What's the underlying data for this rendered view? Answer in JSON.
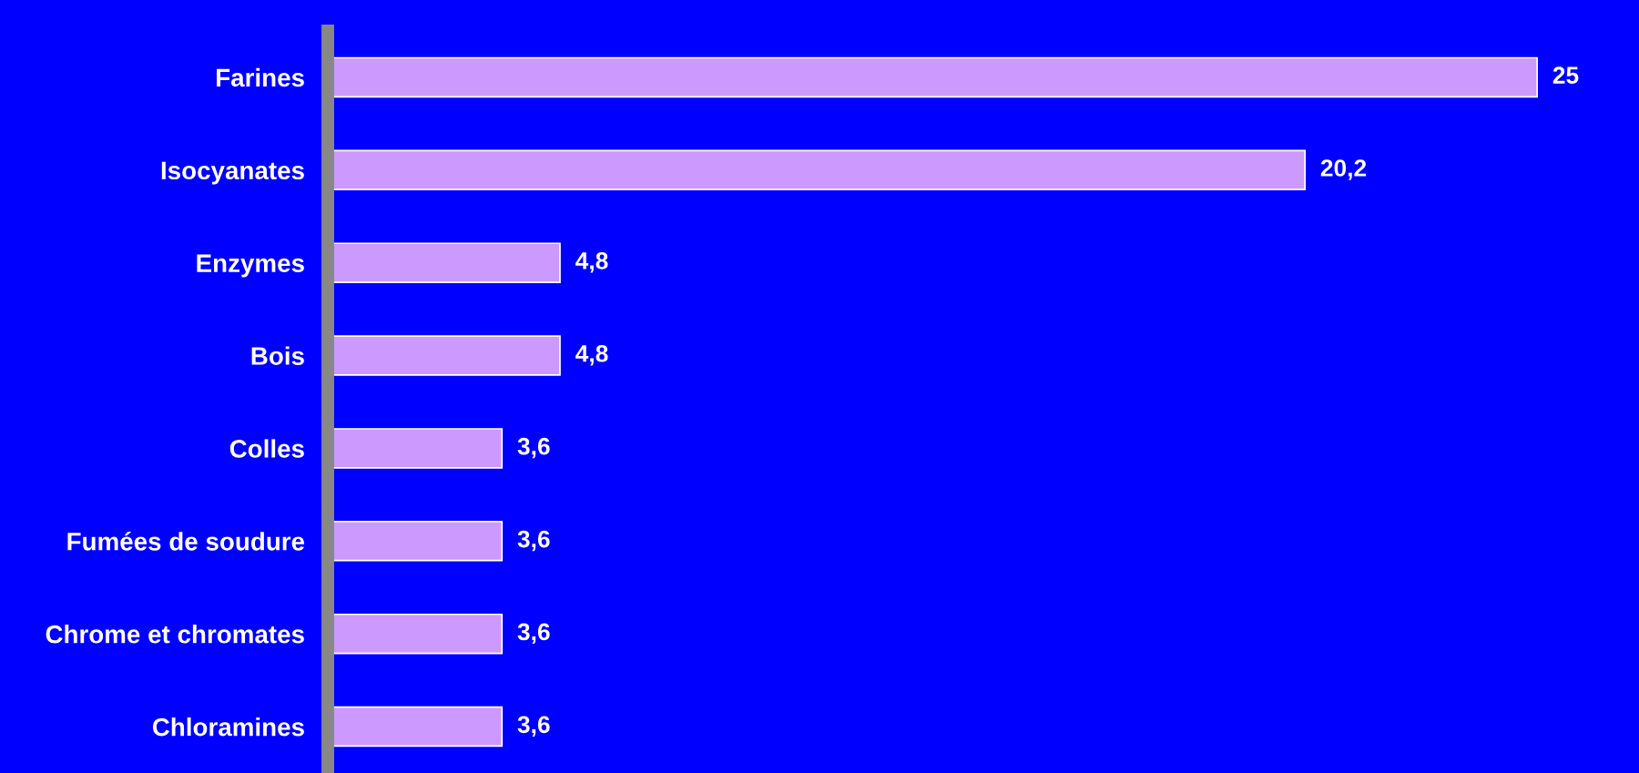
{
  "chart_data": {
    "type": "bar",
    "orientation": "horizontal",
    "categories": [
      "Farines",
      "Isocyanates",
      "Enzymes",
      "Bois",
      "Colles",
      "Fumées de soudure",
      "Chrome et chromates",
      "Chloramines"
    ],
    "values": [
      25,
      20.2,
      4.8,
      4.8,
      3.6,
      3.6,
      3.6,
      3.6
    ],
    "value_labels": [
      "25",
      "20,2",
      "4,8",
      "4,8",
      "3,6",
      "3,6",
      "3,6",
      "3,6"
    ],
    "color": "#cc99ff",
    "grid": false,
    "legend": false
  }
}
